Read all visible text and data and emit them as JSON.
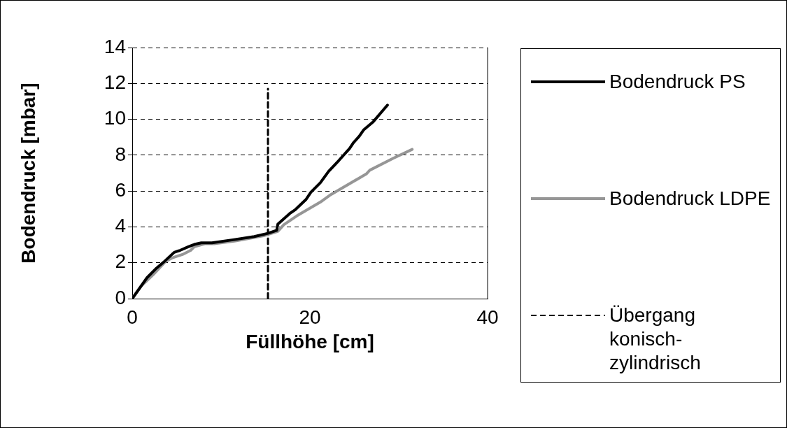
{
  "chart_data": {
    "type": "line",
    "xlabel": "Füllhöhe [cm]",
    "ylabel": "Bodendruck [mbar]",
    "xlim": [
      0,
      40
    ],
    "xticks": [
      0,
      20,
      40
    ],
    "ylim": [
      0,
      14
    ],
    "yticks": [
      0,
      2,
      4,
      6,
      8,
      10,
      12,
      14
    ],
    "grid": "y",
    "legend": "right",
    "marker": "none",
    "series": [
      {
        "name": "Bodendruck PS",
        "color": "#000000",
        "line_style": "solid",
        "x": [
          0,
          1.67,
          2.73,
          3.66,
          4.72,
          5.38,
          6.31,
          6.98,
          7.77,
          8.97,
          11.35,
          13.74,
          15.28,
          16.26,
          16.39,
          17.72,
          18.38,
          19.58,
          20.11,
          21.17,
          22.1,
          23.29,
          24.48,
          24.88,
          25.55,
          26.07,
          27.14,
          28.73
        ],
        "values": [
          0,
          1.17,
          1.7,
          2.09,
          2.58,
          2.69,
          2.89,
          3.02,
          3.11,
          3.11,
          3.28,
          3.46,
          3.64,
          3.81,
          4.15,
          4.74,
          4.97,
          5.54,
          5.93,
          6.46,
          7.09,
          7.72,
          8.38,
          8.68,
          9.05,
          9.42,
          9.87,
          10.79
        ]
      },
      {
        "name": "Bodendruck LDPE",
        "color": "#969696",
        "line_style": "solid",
        "x": [
          0,
          1.01,
          2.33,
          3.79,
          4.59,
          5.65,
          6.58,
          6.98,
          8.17,
          9.23,
          11.62,
          14.8,
          16.39,
          17.06,
          18.51,
          21.17,
          22.23,
          26.34,
          26.74,
          29.39,
          31.51
        ],
        "values": [
          0,
          0.7,
          1.32,
          2.09,
          2.29,
          2.46,
          2.69,
          2.89,
          3.06,
          3.06,
          3.22,
          3.51,
          3.75,
          4.12,
          4.61,
          5.38,
          5.76,
          6.95,
          7.16,
          7.83,
          8.32
        ]
      },
      {
        "name": "Übergang konisch-zylindrisch",
        "color": "#000000",
        "line_style": "dashed",
        "x": [
          15.28,
          15.28
        ],
        "values": [
          0,
          11.7
        ]
      }
    ]
  }
}
